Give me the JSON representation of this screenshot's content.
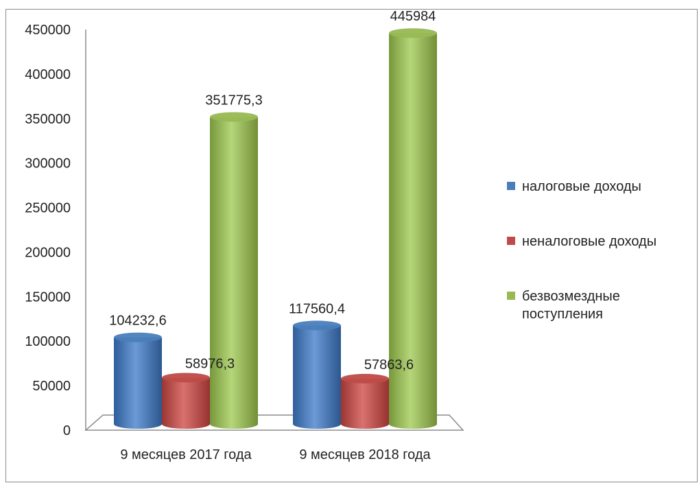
{
  "chart_data": {
    "type": "bar",
    "title": "",
    "xlabel": "",
    "ylabel": "",
    "ylim": [
      0,
      450000
    ],
    "yticks": [
      "0",
      "50000",
      "100000",
      "150000",
      "200000",
      "250000",
      "300000",
      "350000",
      "400000",
      "450000"
    ],
    "ytick_values": [
      0,
      50000,
      100000,
      150000,
      200000,
      250000,
      300000,
      350000,
      400000,
      450000
    ],
    "categories": [
      "9 месяцев  2017 года",
      "9 месяцев  2018 года"
    ],
    "series": [
      {
        "name": "налоговые доходы",
        "color": "#4a7ebb",
        "values": [
          104232.6,
          117560.4
        ],
        "labels": [
          "104232,6",
          "117560,4"
        ]
      },
      {
        "name": "неналоговые доходы",
        "color": "#be4b48",
        "values": [
          58976.3,
          57863.6
        ],
        "labels": [
          "58976,3",
          "57863,6"
        ]
      },
      {
        "name": "безвозмездные поступления",
        "color": "#98b954",
        "values": [
          351775.3,
          445984
        ],
        "labels": [
          "351775,3",
          "445984"
        ]
      }
    ],
    "legend": {
      "placement": "right",
      "lines": [
        [
          "налоговые доходы"
        ],
        [
          "неналоговые доходы"
        ],
        [
          "безвозмездные",
          "поступления"
        ]
      ]
    },
    "grid": false
  }
}
